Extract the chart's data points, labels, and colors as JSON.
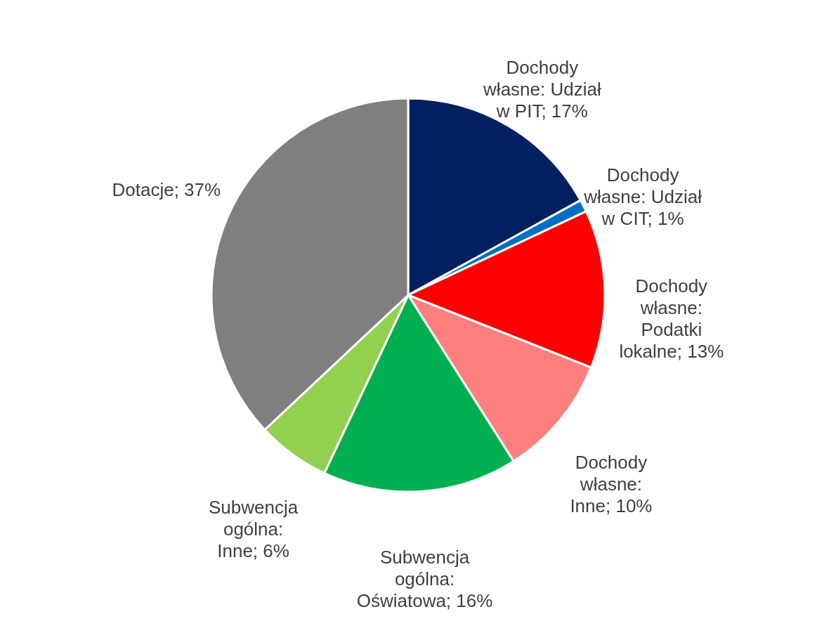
{
  "chart_data": {
    "type": "pie",
    "categories": [
      "Dochody własne: Udział w PIT",
      "Dochody własne: Udział w CIT",
      "Dochody własne: Podatki lokalne",
      "Dochody własne: Inne",
      "Subwencja ogólna: Oświatowa",
      "Subwencja ogólna: Inne",
      "Dotacje"
    ],
    "values": [
      17,
      1,
      13,
      10,
      16,
      6,
      37
    ],
    "value_labels": [
      "17%",
      "1%",
      "13%",
      "10%",
      "16%",
      "6%",
      "37%"
    ],
    "colors": [
      "#002060",
      "#0070c0",
      "#ff0000",
      "#ff7f7f",
      "#00b050",
      "#92d050",
      "#7f7f7f"
    ]
  }
}
